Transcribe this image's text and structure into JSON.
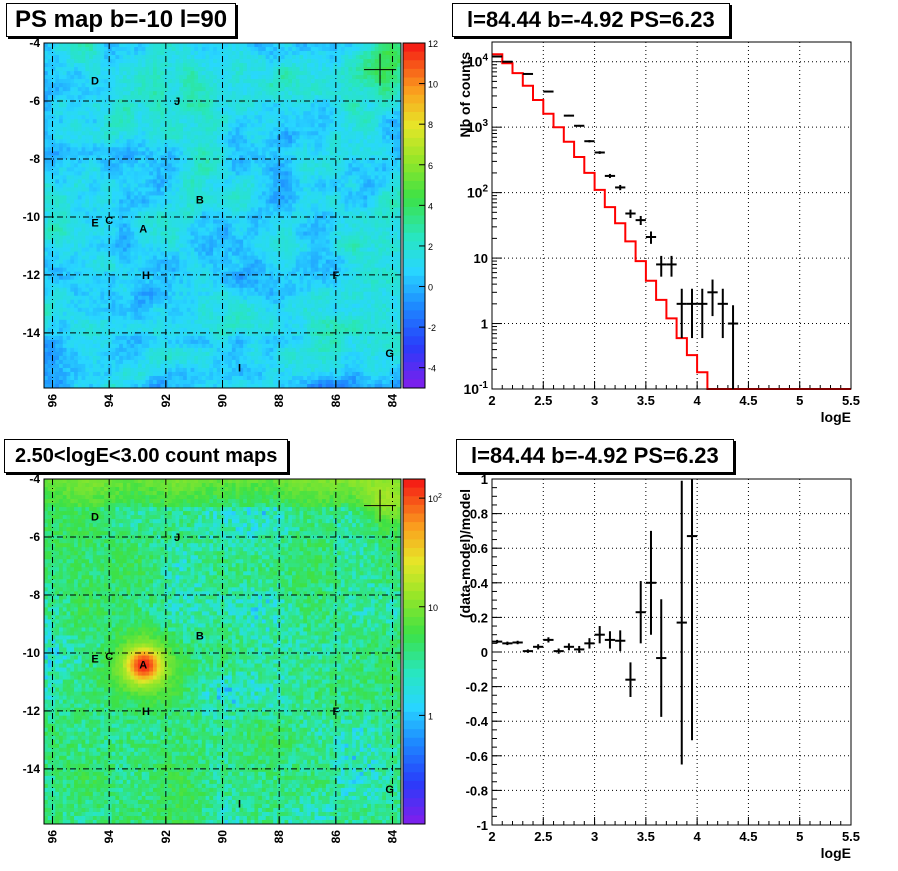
{
  "panels": {
    "ps_map": {
      "title": "PS map b=-10 l=90"
    },
    "spectrum": {
      "title": "l=84.44 b=-4.92 PS=6.23"
    },
    "count_map": {
      "title": "2.50<logE<3.00 count maps"
    },
    "residual": {
      "title": "l=84.44 b=-4.92 PS=6.23"
    }
  },
  "colors": {
    "model_line": "#ff0000",
    "data_points": "#000000",
    "grid": "#000000"
  },
  "chart_data": [
    {
      "type": "heatmap",
      "title": "PS map b=-10 l=90",
      "x_ticks": [
        "96",
        "94",
        "92",
        "90",
        "88",
        "86",
        "84"
      ],
      "y_ticks": [
        "-4",
        "-6",
        "-8",
        "-10",
        "-12",
        "-14"
      ],
      "xlim": [
        96.3,
        83.7
      ],
      "ylim": [
        -15.9,
        -4
      ],
      "colorbar": {
        "ticks": [
          "12",
          "10",
          "8",
          "6",
          "4",
          "2",
          "0",
          "-2",
          "-4"
        ],
        "range": [
          -5,
          12
        ],
        "scale": "linear"
      },
      "grid": true,
      "marker": {
        "l": 84.44,
        "b": -4.92
      },
      "sources": [
        {
          "label": "D",
          "l": 94.5,
          "b": -5.3
        },
        {
          "label": "J",
          "l": 91.6,
          "b": -6.0
        },
        {
          "label": "B",
          "l": 90.8,
          "b": -9.4
        },
        {
          "label": "E",
          "l": 94.5,
          "b": -10.2
        },
        {
          "label": "C",
          "l": 94.0,
          "b": -10.1
        },
        {
          "label": "A",
          "l": 92.8,
          "b": -10.4
        },
        {
          "label": "H",
          "l": 92.7,
          "b": -12.0
        },
        {
          "label": "F",
          "l": 86.0,
          "b": -12.0
        },
        {
          "label": "I",
          "l": 89.4,
          "b": -15.2
        },
        {
          "label": "G",
          "l": 84.1,
          "b": -14.7
        }
      ]
    },
    {
      "type": "line",
      "title": "l=84.44 b=-4.92 PS=6.23",
      "xlabel": "logE",
      "ylabel": "Nb of counts",
      "xlim": [
        2,
        5.5
      ],
      "ylim": [
        0.1,
        20000
      ],
      "yscale": "log",
      "x_ticks": [
        "2",
        "2.5",
        "3",
        "3.5",
        "4",
        "4.5",
        "5",
        "5.5"
      ],
      "y_ticks": [
        "10^4",
        "10^3",
        "10^2",
        "10",
        "1",
        "10^-1"
      ],
      "grid": true,
      "series": [
        {
          "style": "histogram",
          "color": "#ff0000",
          "bin_edges": [
            2.0,
            2.1,
            2.2,
            2.3,
            2.4,
            2.5,
            2.6,
            2.7,
            2.8,
            2.9,
            3.0,
            3.1,
            3.2,
            3.3,
            3.4,
            3.5,
            3.6,
            3.7,
            3.8,
            3.9,
            4.0,
            4.1,
            4.2,
            4.3,
            4.4,
            4.5,
            4.6,
            4.7,
            4.8,
            4.9,
            5.0,
            5.1,
            5.2,
            5.3,
            5.4,
            5.5
          ],
          "values": [
            13000,
            9500,
            6700,
            4300,
            2600,
            1600,
            1000,
            600,
            350,
            200,
            110,
            60,
            34,
            18,
            9,
            4.5,
            2.3,
            1.2,
            0.6,
            0.33,
            0.18,
            0.1,
            0.1,
            0.1,
            0.1,
            0.1,
            0.1,
            0.1,
            0.1,
            0.1,
            0.1,
            0.1,
            0.1,
            0.1,
            0.1
          ]
        },
        {
          "style": "errorbars",
          "color": "#000000",
          "x": [
            2.05,
            2.15,
            2.35,
            2.55,
            2.75,
            2.85,
            2.95,
            3.05,
            3.15,
            3.25,
            3.35,
            3.45,
            3.55,
            3.65,
            3.75,
            3.85,
            3.95,
            4.05,
            4.15,
            4.25,
            4.35
          ],
          "y": [
            12000,
            10000,
            6500,
            3500,
            1500,
            1050,
            610,
            410,
            180,
            120,
            48,
            38,
            21,
            8,
            8,
            2,
            2,
            2,
            3,
            2,
            1
          ],
          "yerr_lo": [
            110,
            100,
            80,
            60,
            40,
            32,
            25,
            20,
            13,
            11,
            7,
            6,
            4.5,
            2.8,
            2.8,
            1.4,
            1.4,
            1.4,
            1.7,
            1.4,
            0.9
          ],
          "yerr_hi": [
            110,
            100,
            80,
            60,
            40,
            32,
            25,
            20,
            13,
            11,
            7,
            6,
            4.5,
            2.8,
            2.8,
            1.4,
            1.4,
            1.4,
            1.7,
            1.4,
            0.9
          ]
        }
      ]
    },
    {
      "type": "heatmap",
      "title": "2.50<logE<3.00 count maps",
      "x_ticks": [
        "96",
        "94",
        "92",
        "90",
        "88",
        "86",
        "84"
      ],
      "y_ticks": [
        "-4",
        "-6",
        "-8",
        "-10",
        "-12",
        "-14"
      ],
      "xlim": [
        96.3,
        83.7
      ],
      "ylim": [
        -15.9,
        -4
      ],
      "colorbar": {
        "ticks": [
          "10^2",
          "10",
          "1"
        ],
        "range": [
          0.1,
          150
        ],
        "scale": "log"
      },
      "grid": true,
      "marker": {
        "l": 84.44,
        "b": -4.92
      },
      "sources": [
        {
          "label": "D",
          "l": 94.5,
          "b": -5.3
        },
        {
          "label": "J",
          "l": 91.6,
          "b": -6.0
        },
        {
          "label": "B",
          "l": 90.8,
          "b": -9.4
        },
        {
          "label": "E",
          "l": 94.5,
          "b": -10.2
        },
        {
          "label": "C",
          "l": 94.0,
          "b": -10.1
        },
        {
          "label": "A",
          "l": 92.8,
          "b": -10.4
        },
        {
          "label": "H",
          "l": 92.7,
          "b": -12.0
        },
        {
          "label": "F",
          "l": 86.0,
          "b": -12.0
        },
        {
          "label": "I",
          "l": 89.4,
          "b": -15.2
        },
        {
          "label": "G",
          "l": 84.1,
          "b": -14.7
        }
      ]
    },
    {
      "type": "scatter",
      "title": "l=84.44 b=-4.92 PS=6.23",
      "xlabel": "logE",
      "ylabel": "(data-model)/model",
      "xlim": [
        2,
        5.5
      ],
      "ylim": [
        -1,
        1
      ],
      "x_ticks": [
        "2",
        "2.5",
        "3",
        "3.5",
        "4",
        "4.5",
        "5",
        "5.5"
      ],
      "y_ticks": [
        "1",
        "0.8",
        "0.6",
        "0.4",
        "0.2",
        "0",
        "-0.2",
        "-0.4",
        "-0.6",
        "-0.8",
        "-1"
      ],
      "grid": true,
      "series": [
        {
          "style": "errorbars",
          "color": "#000000",
          "x": [
            2.05,
            2.15,
            2.25,
            2.35,
            2.45,
            2.55,
            2.65,
            2.75,
            2.85,
            2.95,
            3.05,
            3.15,
            3.25,
            3.35,
            3.45,
            3.55,
            3.65,
            3.85,
            3.95
          ],
          "y": [
            0.06,
            0.05,
            0.055,
            0.005,
            0.03,
            0.07,
            0.005,
            0.03,
            0.015,
            0.05,
            0.1,
            0.07,
            0.065,
            -0.16,
            0.23,
            0.4,
            -0.035,
            0.17,
            0.67
          ],
          "yerr_lo": [
            0.01,
            0.01,
            0.01,
            0.01,
            0.015,
            0.015,
            0.015,
            0.02,
            0.02,
            0.03,
            0.05,
            0.05,
            0.06,
            0.1,
            0.18,
            0.3,
            0.34,
            0.82,
            1.18
          ],
          "yerr_hi": [
            0.01,
            0.01,
            0.01,
            0.01,
            0.015,
            0.015,
            0.015,
            0.02,
            0.02,
            0.03,
            0.05,
            0.05,
            0.06,
            0.1,
            0.18,
            0.3,
            0.34,
            0.82,
            0.33
          ]
        }
      ]
    }
  ]
}
